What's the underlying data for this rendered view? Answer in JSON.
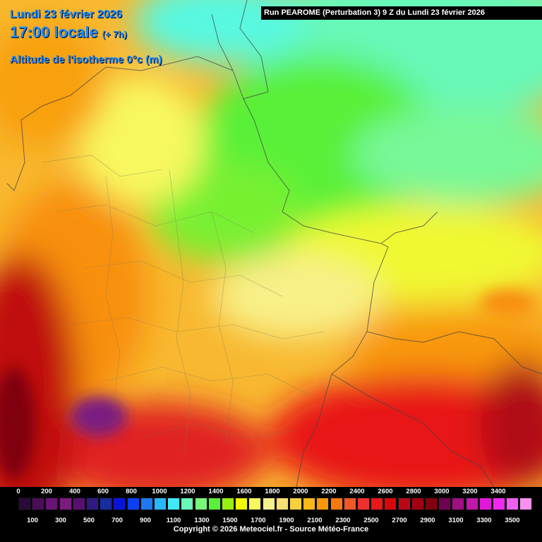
{
  "header": {
    "date": "Lundi 23 février 2026",
    "time": "17:00 locale",
    "offset": "(+ 7h)",
    "parameter": "Altitude de l'isotherme 0°c (m)",
    "run": "Run PEAROME (Perturbation 3) 9 Z du Lundi 23 février 2026"
  },
  "legend": {
    "labels_top": [
      "0",
      "200",
      "400",
      "600",
      "800",
      "1000",
      "1200",
      "1400",
      "1600",
      "1800",
      "2000",
      "2200",
      "2400",
      "2600",
      "2800",
      "3000",
      "3200",
      "3400"
    ],
    "labels_bottom": [
      "100",
      "300",
      "500",
      "700",
      "900",
      "1100",
      "1300",
      "1500",
      "1700",
      "1900",
      "2100",
      "2300",
      "2500",
      "2700",
      "2900",
      "3100",
      "3300",
      "3500"
    ],
    "colors": [
      "#2a0a3a",
      "#4b0c5a",
      "#6a1275",
      "#7c1a80",
      "#581070",
      "#2e1a80",
      "#1a2aa0",
      "#0a14d8",
      "#0a40f0",
      "#1e78f0",
      "#28b8f8",
      "#40e8f8",
      "#68f8b8",
      "#78f878",
      "#58f038",
      "#98f010",
      "#f0f808",
      "#f8f860",
      "#f8f088",
      "#f8e070",
      "#f8d040",
      "#f8b818",
      "#f89808",
      "#f87810",
      "#f05828",
      "#f03030",
      "#e81818",
      "#d80808",
      "#b80818",
      "#a00010",
      "#800010",
      "#700050",
      "#9c1080",
      "#c018a8",
      "#e018d8",
      "#f028f0",
      "#f060f0",
      "#f890f0"
    ],
    "copyright": "Copyright © 2026 Meteociel.fr - Source Météo-France"
  }
}
